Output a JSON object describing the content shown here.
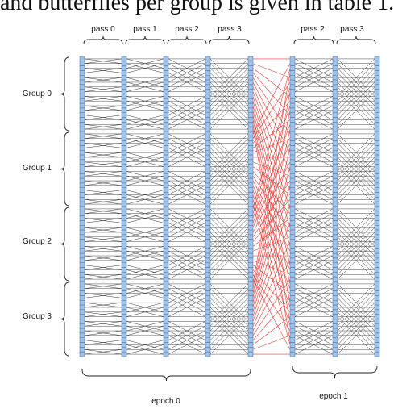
{
  "caption": "and butterflies per group is given in table 1.",
  "diagram": {
    "pass_labels_epoch0": [
      "pass 0",
      "pass 1",
      "pass 2",
      "pass 3"
    ],
    "pass_labels_epoch1": [
      "pass 2",
      "pass 3"
    ],
    "groups": [
      "Group 0",
      "Group 1",
      "Group 2",
      "Group 3"
    ],
    "epochs": [
      "epoch 0",
      "epoch 1"
    ],
    "nodes_per_column": 64,
    "butterfly_color": "#333333",
    "permutation_color": "#e53935",
    "node_fill": "#9fc3ea",
    "node_stroke": "#4a6f9c"
  }
}
